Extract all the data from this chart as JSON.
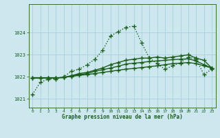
{
  "title": "Graphe pression niveau de la mer (hPa)",
  "bg_color": "#cce8ee",
  "grid_color": "#9dccd8",
  "line_color": "#1a5c1a",
  "xlim": [
    -0.5,
    23.5
  ],
  "ylim": [
    1020.6,
    1025.3
  ],
  "yticks": [
    1021,
    1022,
    1023,
    1024
  ],
  "xticks": [
    0,
    1,
    2,
    3,
    4,
    5,
    6,
    7,
    8,
    9,
    10,
    11,
    12,
    13,
    14,
    15,
    16,
    17,
    18,
    19,
    20,
    21,
    22,
    23
  ],
  "series": [
    [
      1021.2,
      1021.75,
      1021.9,
      1021.9,
      1022.0,
      1022.25,
      1022.35,
      1022.55,
      1022.8,
      1023.2,
      1023.85,
      1024.05,
      1024.25,
      1024.3,
      1023.55,
      1022.85,
      1022.6,
      1022.35,
      1022.5,
      1022.65,
      1022.9,
      1022.8,
      1022.1,
      1022.35
    ],
    [
      1021.95,
      1021.95,
      1021.95,
      1021.95,
      1021.97,
      1022.05,
      1022.15,
      1022.2,
      1022.3,
      1022.4,
      1022.55,
      1022.65,
      1022.75,
      1022.8,
      1022.85,
      1022.85,
      1022.9,
      1022.85,
      1022.9,
      1022.95,
      1023.0,
      1022.85,
      1022.75,
      1022.4
    ],
    [
      1021.95,
      1021.95,
      1021.95,
      1021.95,
      1021.97,
      1022.05,
      1022.1,
      1022.15,
      1022.25,
      1022.32,
      1022.4,
      1022.48,
      1022.58,
      1022.62,
      1022.65,
      1022.7,
      1022.72,
      1022.75,
      1022.78,
      1022.8,
      1022.82,
      1022.72,
      1022.55,
      1022.4
    ],
    [
      1021.95,
      1021.95,
      1021.95,
      1021.95,
      1021.97,
      1022.02,
      1022.07,
      1022.1,
      1022.15,
      1022.2,
      1022.25,
      1022.3,
      1022.35,
      1022.38,
      1022.42,
      1022.46,
      1022.5,
      1022.55,
      1022.6,
      1022.62,
      1022.65,
      1022.6,
      1022.5,
      1022.4
    ]
  ],
  "marker": "+",
  "markersize": 4.0,
  "linewidths": [
    1.0,
    1.0,
    1.0,
    1.0
  ],
  "linestyles": [
    "dotted",
    "solid",
    "solid",
    "solid"
  ]
}
